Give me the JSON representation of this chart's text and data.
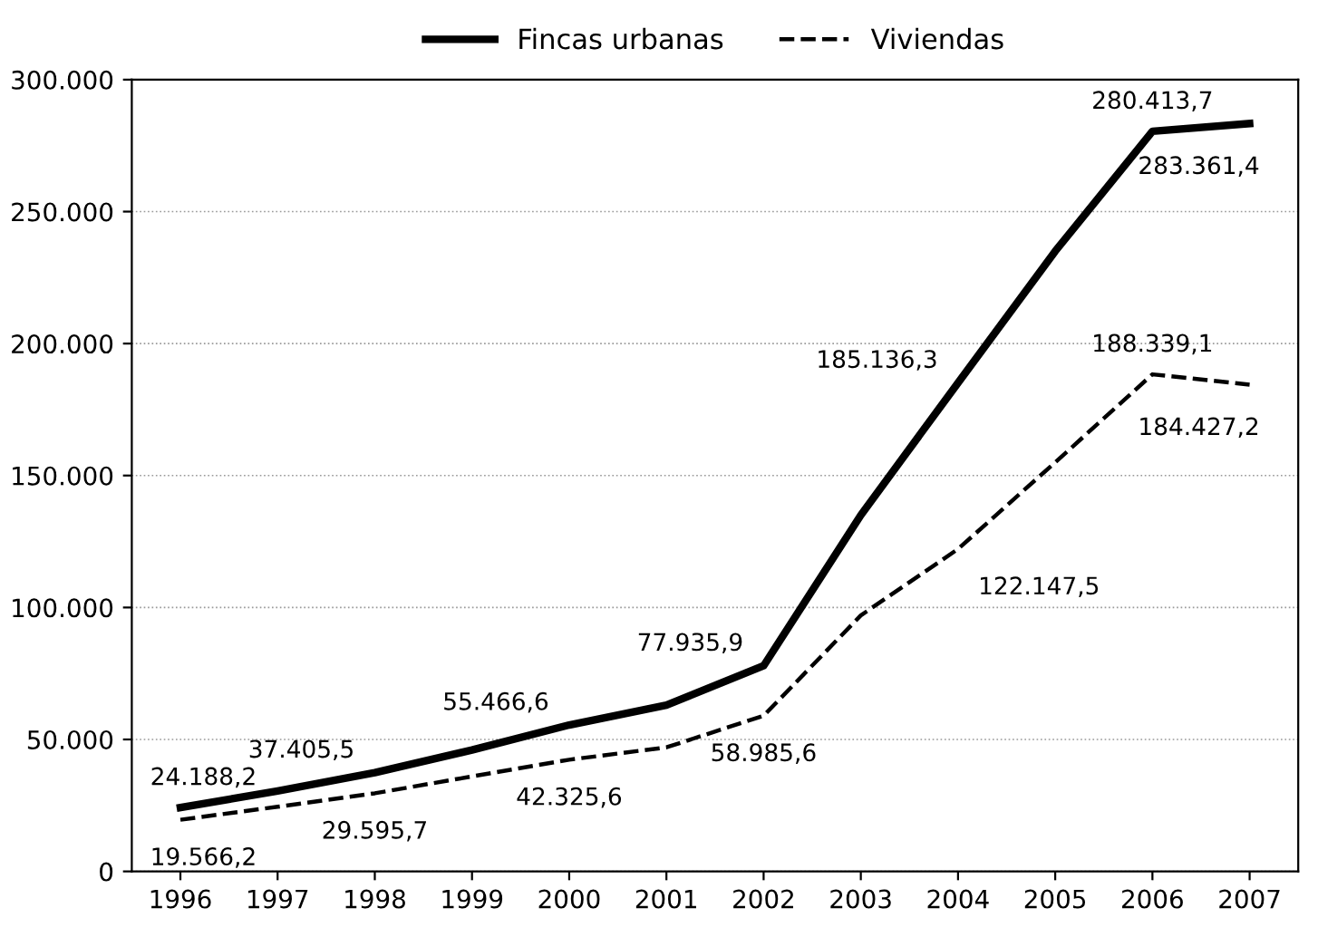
{
  "chart_data": {
    "type": "line",
    "categories": [
      "1996",
      "1997",
      "1998",
      "1999",
      "2000",
      "2001",
      "2002",
      "2003",
      "2004",
      "2005",
      "2006",
      "2007"
    ],
    "series": [
      {
        "name": "Fincas urbanas",
        "color": "#000000",
        "line_style": "solid",
        "values": [
          24188.2,
          30500,
          37405.5,
          46000,
          55466.6,
          63000,
          77935.9,
          135000,
          185136.3,
          235000,
          280413.7,
          283361.4
        ],
        "value_labels": [
          "24.188,2",
          null,
          "37.405,5",
          null,
          "55.466,6",
          null,
          "77.935,9",
          null,
          "185.136,3",
          null,
          "280.413,7",
          "283.361,4"
        ]
      },
      {
        "name": "Viviendas",
        "color": "#000000",
        "line_style": "dashed",
        "values": [
          19566.2,
          24500,
          29595.7,
          36000,
          42325.6,
          47000,
          58985.6,
          97000,
          122147.5,
          155000,
          188339.1,
          184427.2
        ],
        "value_labels": [
          "19.566,2",
          null,
          "29.595,7",
          null,
          "42.325,6",
          null,
          "58.985,6",
          null,
          "122.147,5",
          null,
          "188.339,1",
          "184.427,2"
        ]
      }
    ],
    "ylim": [
      0,
      300000
    ],
    "yticks": [
      0,
      {
        "value": 50000,
        "label": "50.000"
      },
      {
        "value": 100000,
        "label": "100.000"
      },
      {
        "value": 150000,
        "label": "150.000"
      },
      {
        "value": 200000,
        "label": "200.000"
      },
      {
        "value": 250000,
        "label": "250.000"
      },
      {
        "value": 300000,
        "label": "300.000"
      }
    ],
    "grid": "y",
    "legend": "top",
    "marker": "none"
  }
}
